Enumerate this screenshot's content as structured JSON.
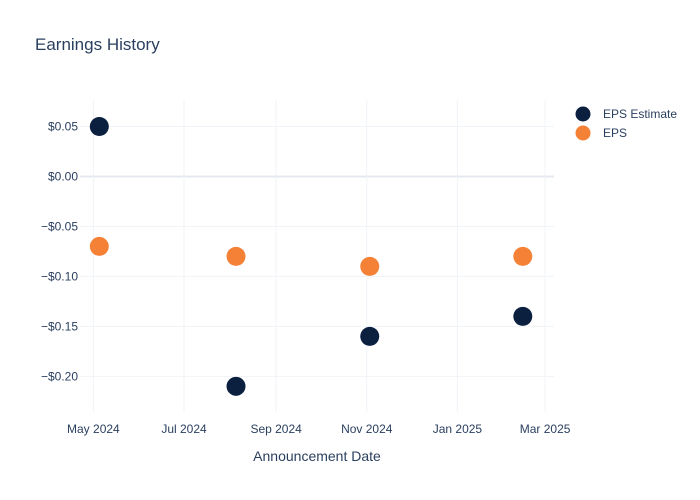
{
  "chart_data": {
    "type": "scatter",
    "title": "Earnings History",
    "xlabel": "Announcement Date",
    "ylabel": "",
    "x_tick_labels": [
      "May 2024",
      "Jul 2024",
      "Sep 2024",
      "Nov 2024",
      "Jan 2025",
      "Mar 2025"
    ],
    "x_tick_dates": [
      "2024-05-01",
      "2024-07-01",
      "2024-09-01",
      "2024-11-01",
      "2025-01-01",
      "2025-03-01"
    ],
    "x_range": [
      "2024-04-22",
      "2025-03-07"
    ],
    "y_tick_labels": [
      "$0.05",
      "$0.00",
      "−$0.05",
      "−$0.10",
      "−$0.15",
      "−$0.20"
    ],
    "y_tick_values": [
      0.05,
      0.0,
      -0.05,
      -0.1,
      -0.15,
      -0.2
    ],
    "ylim": [
      -0.2357,
      0.0765
    ],
    "grid": true,
    "legend_position": "top-right",
    "series": [
      {
        "name": "EPS Estimate",
        "color": "#0b1f3f",
        "x": [
          "2024-05-05",
          "2024-08-05",
          "2024-11-03",
          "2025-02-14"
        ],
        "y": [
          0.05,
          -0.21,
          -0.16,
          -0.14
        ]
      },
      {
        "name": "EPS",
        "color": "#f58136",
        "x": [
          "2024-05-05",
          "2024-08-05",
          "2024-11-03",
          "2025-02-14"
        ],
        "y": [
          -0.07,
          -0.08,
          -0.09,
          -0.08
        ]
      }
    ]
  }
}
